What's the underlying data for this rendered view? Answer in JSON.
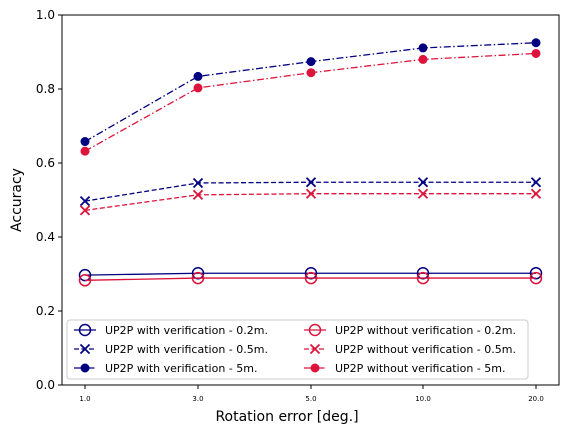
{
  "chart_data": {
    "type": "line",
    "xlabel": "Rotation error [deg.]",
    "ylabel": "Accuracy",
    "ylim": [
      0.0,
      1.0
    ],
    "categories": [
      "1.0",
      "3.0",
      "5.0",
      "10.0",
      "20.0"
    ],
    "y_ticks": [
      "0.0",
      "0.2",
      "0.4",
      "0.6",
      "0.8",
      "1.0"
    ],
    "grid": false,
    "legend_position": "bottom",
    "series": [
      {
        "name": "UP2P with verification - 0.2m.",
        "color": "#000080",
        "marker": "open-circle",
        "linestyle": "solid",
        "values": [
          0.297,
          0.302,
          0.302,
          0.302,
          0.302
        ]
      },
      {
        "name": "UP2P with verification - 0.5m.",
        "color": "#000080",
        "marker": "x",
        "linestyle": "dashed",
        "values": [
          0.497,
          0.546,
          0.548,
          0.548,
          0.548
        ]
      },
      {
        "name": "UP2P with verification - 5m.",
        "color": "#000080",
        "marker": "filled-circle",
        "linestyle": "dashdot",
        "values": [
          0.658,
          0.834,
          0.874,
          0.911,
          0.925
        ]
      },
      {
        "name": "UP2P without verification - 0.2m.",
        "color": "#dc143c",
        "marker": "open-circle",
        "linestyle": "solid",
        "values": [
          0.283,
          0.289,
          0.289,
          0.289,
          0.289
        ]
      },
      {
        "name": "UP2P without verification - 0.5m.",
        "color": "#dc143c",
        "marker": "x",
        "linestyle": "dashed",
        "values": [
          0.472,
          0.514,
          0.517,
          0.517,
          0.517
        ]
      },
      {
        "name": "UP2P without verification - 5m.",
        "color": "#dc143c",
        "marker": "filled-circle",
        "linestyle": "dashdot",
        "values": [
          0.632,
          0.803,
          0.844,
          0.88,
          0.896
        ]
      }
    ]
  }
}
